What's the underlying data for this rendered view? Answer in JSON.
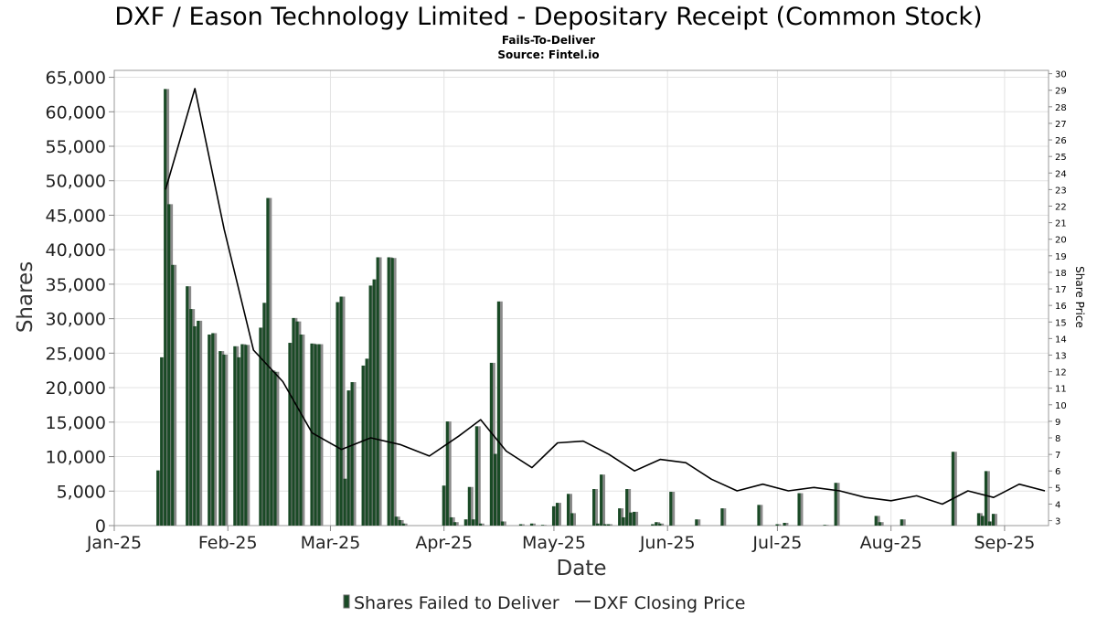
{
  "chart_data": {
    "type": "bar",
    "title": "DXF / Eason Technology Limited - Depositary Receipt (Common Stock)",
    "subtitle_lines": [
      "Fails-To-Deliver",
      "Source: Fintel.io"
    ],
    "xlabel": "Date",
    "ylabel": "Shares",
    "y2label": "Share Price",
    "x_range": [
      "2025-01-01",
      "2025-09-13"
    ],
    "ylim": [
      0,
      66000
    ],
    "y2lim": [
      2.7,
      30.2
    ],
    "yticks": [
      0,
      5000,
      10000,
      15000,
      20000,
      25000,
      30000,
      35000,
      40000,
      45000,
      50000,
      55000,
      60000,
      65000
    ],
    "ytick_labels": [
      "0",
      "5,000",
      "10,000",
      "15,000",
      "20,000",
      "25,000",
      "30,000",
      "35,000",
      "40,000",
      "45,000",
      "50,000",
      "55,000",
      "60,000",
      "65,000"
    ],
    "y2ticks": [
      "3",
      "4",
      "5",
      "6",
      "7",
      "8",
      "9",
      "10",
      "11",
      "12",
      "13",
      "14",
      "15",
      "16",
      "17",
      "18",
      "19",
      "20",
      "21",
      "22",
      "23",
      "24",
      "25",
      "26",
      "27",
      "28",
      "29",
      "30"
    ],
    "xticks": [
      "2025-01-01",
      "2025-02-01",
      "2025-03-01",
      "2025-04-01",
      "2025-05-01",
      "2025-06-01",
      "2025-07-01",
      "2025-08-01",
      "2025-09-01"
    ],
    "xtick_labels": [
      "Jan-25",
      "Feb-25",
      "Mar-25",
      "Apr-25",
      "May-25",
      "Jun-25",
      "Jul-25",
      "Aug-25",
      "Sep-25"
    ],
    "grid": true,
    "legend_position": "bottom",
    "series": [
      {
        "name": "Shares Failed to Deliver",
        "type": "bar",
        "color": "#1a4a26",
        "points": [
          [
            "2025-01-13",
            8000
          ],
          [
            "2025-01-14",
            24400
          ],
          [
            "2025-01-15",
            63300
          ],
          [
            "2025-01-16",
            46600
          ],
          [
            "2025-01-17",
            37800
          ],
          [
            "2025-01-21",
            34700
          ],
          [
            "2025-01-22",
            31400
          ],
          [
            "2025-01-23",
            28900
          ],
          [
            "2025-01-24",
            29700
          ],
          [
            "2025-01-27",
            27700
          ],
          [
            "2025-01-28",
            27900
          ],
          [
            "2025-01-30",
            25300
          ],
          [
            "2025-01-31",
            24800
          ],
          [
            "2025-02-03",
            26000
          ],
          [
            "2025-02-04",
            24400
          ],
          [
            "2025-02-05",
            26300
          ],
          [
            "2025-02-06",
            26200
          ],
          [
            "2025-02-10",
            28700
          ],
          [
            "2025-02-11",
            32300
          ],
          [
            "2025-02-12",
            47500
          ],
          [
            "2025-02-13",
            22500
          ],
          [
            "2025-02-14",
            22300
          ],
          [
            "2025-02-18",
            26500
          ],
          [
            "2025-02-19",
            30100
          ],
          [
            "2025-02-20",
            29600
          ],
          [
            "2025-02-21",
            27700
          ],
          [
            "2025-02-24",
            26400
          ],
          [
            "2025-02-25",
            26300
          ],
          [
            "2025-02-26",
            26300
          ],
          [
            "2025-03-03",
            32400
          ],
          [
            "2025-03-04",
            33200
          ],
          [
            "2025-03-05",
            6800
          ],
          [
            "2025-03-06",
            19600
          ],
          [
            "2025-03-07",
            20800
          ],
          [
            "2025-03-10",
            23200
          ],
          [
            "2025-03-11",
            24200
          ],
          [
            "2025-03-12",
            34800
          ],
          [
            "2025-03-13",
            35700
          ],
          [
            "2025-03-14",
            38900
          ],
          [
            "2025-03-17",
            38900
          ],
          [
            "2025-03-18",
            38800
          ],
          [
            "2025-03-19",
            1300
          ],
          [
            "2025-03-20",
            800
          ],
          [
            "2025-03-21",
            300
          ],
          [
            "2025-04-01",
            5800
          ],
          [
            "2025-04-02",
            15100
          ],
          [
            "2025-04-03",
            1200
          ],
          [
            "2025-04-04",
            500
          ],
          [
            "2025-04-07",
            900
          ],
          [
            "2025-04-08",
            5600
          ],
          [
            "2025-04-09",
            900
          ],
          [
            "2025-04-10",
            14400
          ],
          [
            "2025-04-11",
            300
          ],
          [
            "2025-04-14",
            23600
          ],
          [
            "2025-04-15",
            10400
          ],
          [
            "2025-04-16",
            32500
          ],
          [
            "2025-04-17",
            600
          ],
          [
            "2025-04-22",
            200
          ],
          [
            "2025-04-25",
            300
          ],
          [
            "2025-04-28",
            100
          ],
          [
            "2025-05-01",
            2800
          ],
          [
            "2025-05-02",
            3300
          ],
          [
            "2025-05-05",
            4600
          ],
          [
            "2025-05-06",
            1800
          ],
          [
            "2025-05-12",
            5300
          ],
          [
            "2025-05-13",
            300
          ],
          [
            "2025-05-14",
            7400
          ],
          [
            "2025-05-15",
            200
          ],
          [
            "2025-05-16",
            200
          ],
          [
            "2025-05-19",
            2500
          ],
          [
            "2025-05-20",
            1200
          ],
          [
            "2025-05-21",
            5300
          ],
          [
            "2025-05-22",
            1900
          ],
          [
            "2025-05-23",
            2000
          ],
          [
            "2025-05-28",
            200
          ],
          [
            "2025-05-29",
            500
          ],
          [
            "2025-05-30",
            300
          ],
          [
            "2025-06-02",
            4900
          ],
          [
            "2025-06-09",
            900
          ],
          [
            "2025-06-16",
            2500
          ],
          [
            "2025-06-26",
            3000
          ],
          [
            "2025-07-01",
            200
          ],
          [
            "2025-07-03",
            400
          ],
          [
            "2025-07-07",
            4700
          ],
          [
            "2025-07-14",
            100
          ],
          [
            "2025-07-17",
            6200
          ],
          [
            "2025-07-28",
            1400
          ],
          [
            "2025-07-29",
            500
          ],
          [
            "2025-08-04",
            900
          ],
          [
            "2025-08-18",
            10700
          ],
          [
            "2025-08-25",
            1800
          ],
          [
            "2025-08-26",
            1400
          ],
          [
            "2025-08-27",
            7900
          ],
          [
            "2025-08-28",
            600
          ],
          [
            "2025-08-29",
            1700
          ]
        ]
      },
      {
        "name": "DXF Closing Price",
        "type": "line",
        "color": "#000000",
        "points": [
          [
            "2025-01-15",
            23.0
          ],
          [
            "2025-01-23",
            29.1
          ],
          [
            "2025-01-31",
            20.6
          ],
          [
            "2025-02-08",
            13.3
          ],
          [
            "2025-02-16",
            11.4
          ],
          [
            "2025-02-24",
            8.3
          ],
          [
            "2025-03-04",
            7.3
          ],
          [
            "2025-03-12",
            8.0
          ],
          [
            "2025-03-20",
            7.6
          ],
          [
            "2025-03-28",
            6.9
          ],
          [
            "2025-04-05",
            8.1
          ],
          [
            "2025-04-11",
            9.1
          ],
          [
            "2025-04-18",
            7.2
          ],
          [
            "2025-04-25",
            6.2
          ],
          [
            "2025-05-02",
            7.7
          ],
          [
            "2025-05-09",
            7.8
          ],
          [
            "2025-05-16",
            7.0
          ],
          [
            "2025-05-23",
            6.0
          ],
          [
            "2025-05-30",
            6.7
          ],
          [
            "2025-06-06",
            6.5
          ],
          [
            "2025-06-13",
            5.5
          ],
          [
            "2025-06-20",
            4.8
          ],
          [
            "2025-06-27",
            5.2
          ],
          [
            "2025-07-04",
            4.8
          ],
          [
            "2025-07-11",
            5.0
          ],
          [
            "2025-07-18",
            4.8
          ],
          [
            "2025-07-25",
            4.4
          ],
          [
            "2025-08-01",
            4.2
          ],
          [
            "2025-08-08",
            4.5
          ],
          [
            "2025-08-15",
            4.0
          ],
          [
            "2025-08-22",
            4.8
          ],
          [
            "2025-08-29",
            4.4
          ],
          [
            "2025-09-05",
            5.2
          ],
          [
            "2025-09-12",
            4.8
          ]
        ]
      }
    ]
  }
}
